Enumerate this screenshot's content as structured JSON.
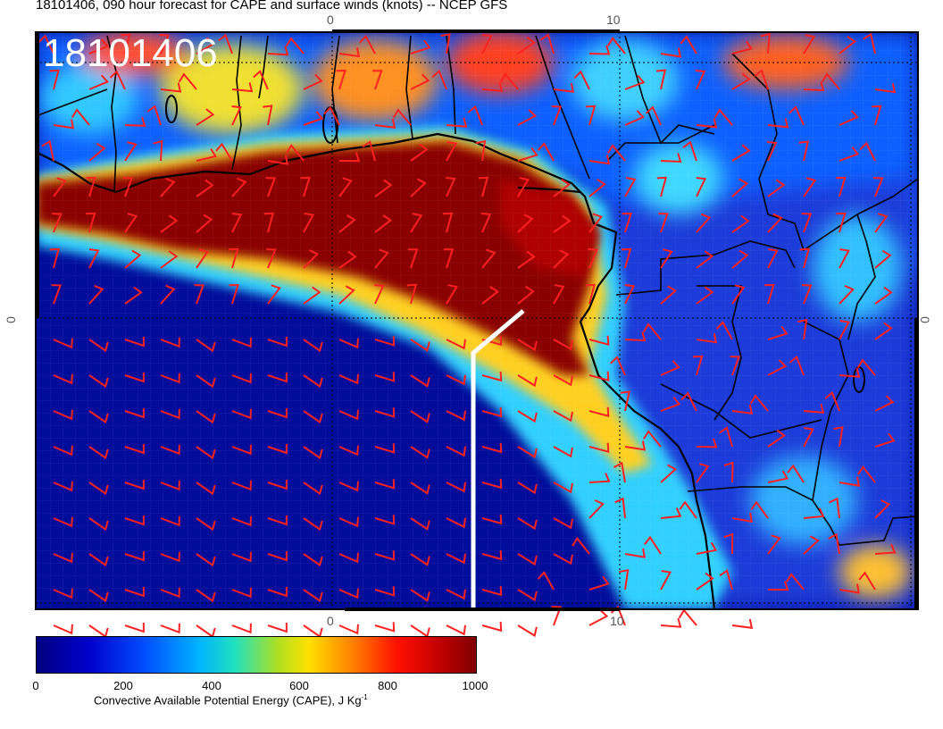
{
  "title": "18101406, 090 hour forecast for CAPE and surface winds (knots) -- NCEP GFS",
  "date_stamp": "18101406",
  "axis_ticks": {
    "top": [
      "0",
      "10"
    ],
    "bottom": [
      "0",
      "10"
    ],
    "left": "0",
    "right": "0"
  },
  "colorbar": {
    "ticks": [
      "0",
      "200",
      "400",
      "600",
      "800",
      "1000"
    ],
    "label_main": "Convective Available Potential Energy (CAPE), J Kg",
    "label_sup": "-1"
  },
  "colors": {
    "ocean_low_cape": "#00008b",
    "high_cape": "#8b0000",
    "wind_barbs": "#ff2020",
    "coastline": "#000000",
    "marker_line": "#ffffff"
  }
}
